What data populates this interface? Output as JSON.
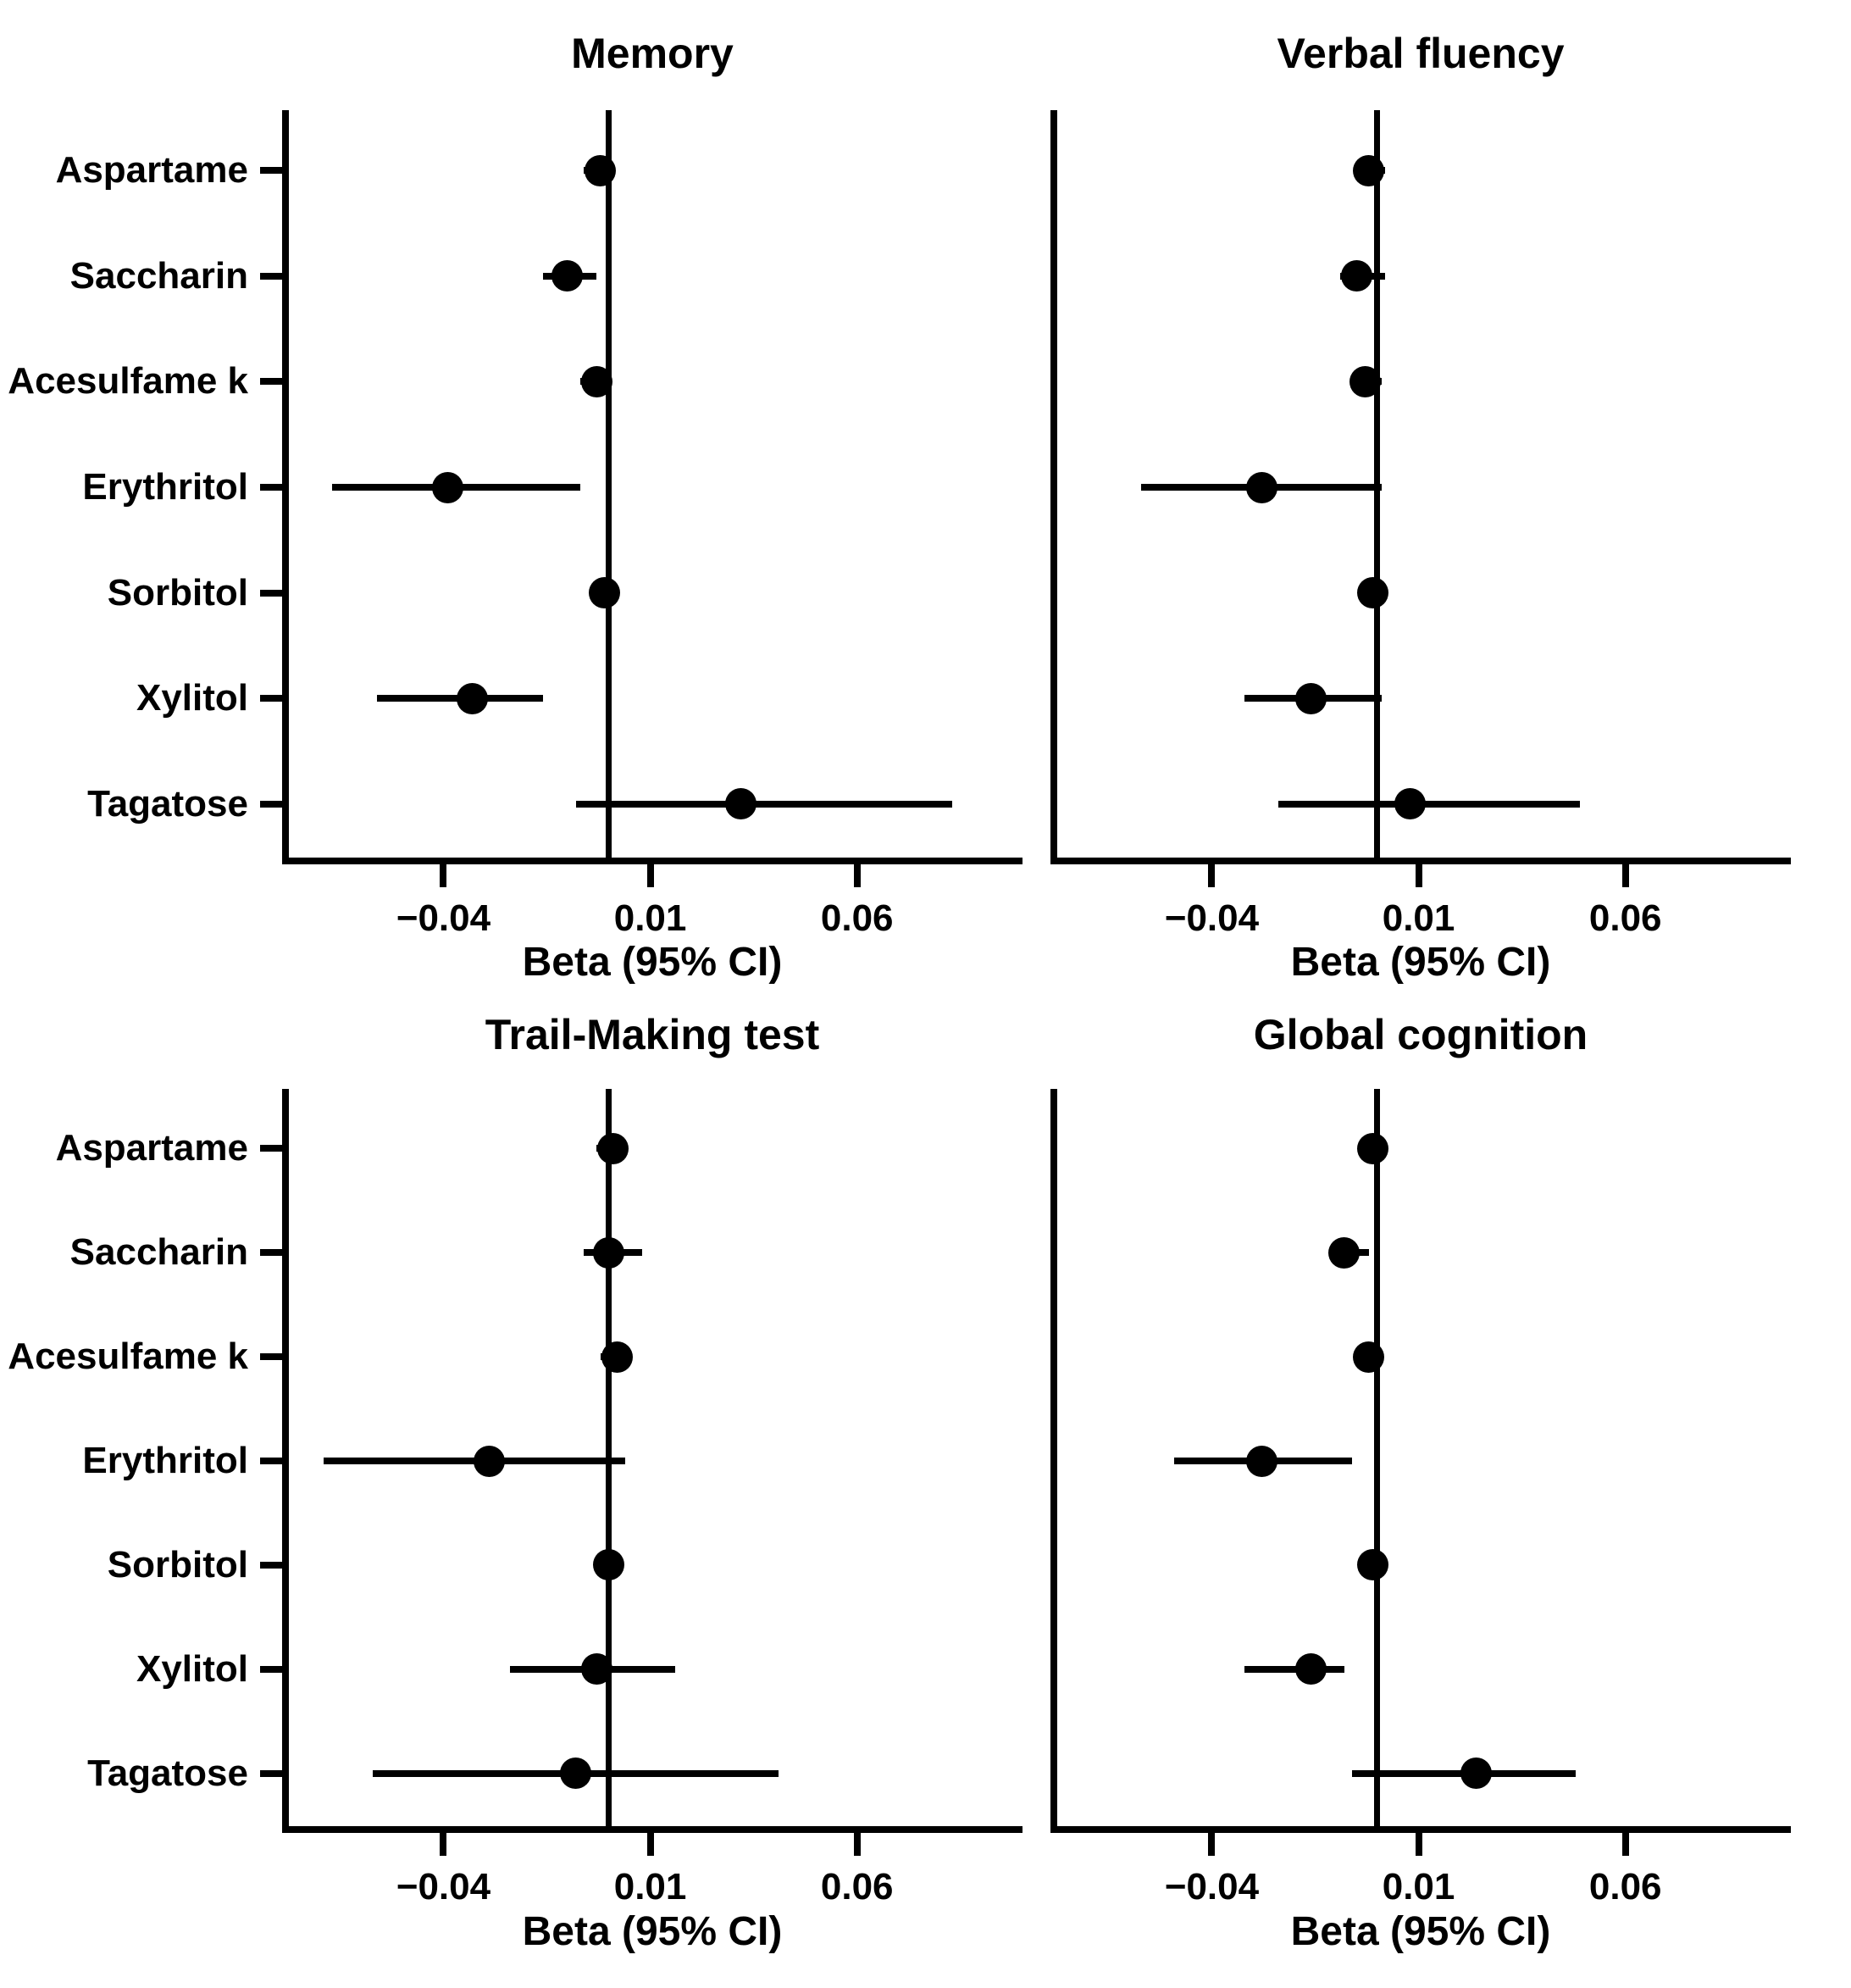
{
  "figure": {
    "background_color": "#ffffff",
    "foreground_color": "#000000",
    "x_axis_label": "Beta (95% CI)",
    "x_tick_values": [
      -0.04,
      0.01,
      0.06
    ],
    "x_tick_labels": [
      "−0.04",
      "0.01",
      "0.06"
    ],
    "x_range": [
      -0.079,
      0.1
    ],
    "reference_line_x": 0,
    "categories": [
      "Aspartame",
      "Saccharin",
      "Acesulfame k",
      "Erythritol",
      "Sorbitol",
      "Xylitol",
      "Tagatose"
    ]
  },
  "chart_data": [
    {
      "type": "scatter",
      "subtype": "forest-plot",
      "title": "Memory",
      "xlabel": "Beta (95% CI)",
      "xlim": [
        -0.079,
        0.1
      ],
      "x_ticks": [
        -0.04,
        0.01,
        0.06
      ],
      "reference_x": 0,
      "grid": false,
      "categories": [
        "Aspartame",
        "Saccharin",
        "Acesulfame k",
        "Erythritol",
        "Sorbitol",
        "Xylitol",
        "Tagatose"
      ],
      "points": [
        {
          "category": "Aspartame",
          "beta": -0.002,
          "ci_low": -0.006,
          "ci_high": 0.001
        },
        {
          "category": "Saccharin",
          "beta": -0.01,
          "ci_low": -0.016,
          "ci_high": -0.003
        },
        {
          "category": "Acesulfame k",
          "beta": -0.003,
          "ci_low": -0.007,
          "ci_high": 0.0
        },
        {
          "category": "Erythritol",
          "beta": -0.039,
          "ci_low": -0.067,
          "ci_high": -0.007
        },
        {
          "category": "Sorbitol",
          "beta": -0.001,
          "ci_low": -0.004,
          "ci_high": 0.002
        },
        {
          "category": "Xylitol",
          "beta": -0.033,
          "ci_low": -0.056,
          "ci_high": -0.016
        },
        {
          "category": "Tagatose",
          "beta": 0.032,
          "ci_low": -0.008,
          "ci_high": 0.083
        }
      ]
    },
    {
      "type": "scatter",
      "subtype": "forest-plot",
      "title": "Verbal fluency",
      "xlabel": "Beta (95% CI)",
      "xlim": [
        -0.079,
        0.1
      ],
      "x_ticks": [
        -0.04,
        0.01,
        0.06
      ],
      "reference_x": 0,
      "grid": false,
      "categories": [
        "Aspartame",
        "Saccharin",
        "Acesulfame k",
        "Erythritol",
        "Sorbitol",
        "Xylitol",
        "Tagatose"
      ],
      "points": [
        {
          "category": "Aspartame",
          "beta": -0.002,
          "ci_low": -0.005,
          "ci_high": 0.002
        },
        {
          "category": "Saccharin",
          "beta": -0.005,
          "ci_low": -0.009,
          "ci_high": 0.002
        },
        {
          "category": "Acesulfame k",
          "beta": -0.003,
          "ci_low": -0.006,
          "ci_high": 0.001
        },
        {
          "category": "Erythritol",
          "beta": -0.028,
          "ci_low": -0.057,
          "ci_high": 0.001
        },
        {
          "category": "Sorbitol",
          "beta": -0.001,
          "ci_low": -0.004,
          "ci_high": 0.002
        },
        {
          "category": "Xylitol",
          "beta": -0.016,
          "ci_low": -0.032,
          "ci_high": 0.001
        },
        {
          "category": "Tagatose",
          "beta": 0.008,
          "ci_low": -0.024,
          "ci_high": 0.049
        }
      ]
    },
    {
      "type": "scatter",
      "subtype": "forest-plot",
      "title": "Trail-Making test",
      "xlabel": "Beta (95% CI)",
      "xlim": [
        -0.079,
        0.1
      ],
      "x_ticks": [
        -0.04,
        0.01,
        0.06
      ],
      "reference_x": 0,
      "grid": false,
      "categories": [
        "Aspartame",
        "Saccharin",
        "Acesulfame k",
        "Erythritol",
        "Sorbitol",
        "Xylitol",
        "Tagatose"
      ],
      "points": [
        {
          "category": "Aspartame",
          "beta": 0.001,
          "ci_low": -0.003,
          "ci_high": 0.004
        },
        {
          "category": "Saccharin",
          "beta": 0.0,
          "ci_low": -0.006,
          "ci_high": 0.008
        },
        {
          "category": "Acesulfame k",
          "beta": 0.002,
          "ci_low": -0.002,
          "ci_high": 0.005
        },
        {
          "category": "Erythritol",
          "beta": -0.029,
          "ci_low": -0.069,
          "ci_high": 0.004
        },
        {
          "category": "Sorbitol",
          "beta": 0.0,
          "ci_low": -0.003,
          "ci_high": 0.003
        },
        {
          "category": "Xylitol",
          "beta": -0.003,
          "ci_low": -0.024,
          "ci_high": 0.016
        },
        {
          "category": "Tagatose",
          "beta": -0.008,
          "ci_low": -0.057,
          "ci_high": 0.041
        }
      ]
    },
    {
      "type": "scatter",
      "subtype": "forest-plot",
      "title": "Global cognition",
      "xlabel": "Beta (95% CI)",
      "xlim": [
        -0.079,
        0.1
      ],
      "x_ticks": [
        -0.04,
        0.01,
        0.06
      ],
      "reference_x": 0,
      "grid": false,
      "categories": [
        "Aspartame",
        "Saccharin",
        "Acesulfame k",
        "Erythritol",
        "Sorbitol",
        "Xylitol",
        "Tagatose"
      ],
      "points": [
        {
          "category": "Aspartame",
          "beta": -0.001,
          "ci_low": -0.004,
          "ci_high": 0.002
        },
        {
          "category": "Saccharin",
          "beta": -0.008,
          "ci_low": -0.011,
          "ci_high": -0.002
        },
        {
          "category": "Acesulfame k",
          "beta": -0.002,
          "ci_low": -0.005,
          "ci_high": 0.0
        },
        {
          "category": "Erythritol",
          "beta": -0.028,
          "ci_low": -0.049,
          "ci_high": -0.006
        },
        {
          "category": "Sorbitol",
          "beta": -0.001,
          "ci_low": -0.004,
          "ci_high": 0.002
        },
        {
          "category": "Xylitol",
          "beta": -0.016,
          "ci_low": -0.032,
          "ci_high": -0.008
        },
        {
          "category": "Tagatose",
          "beta": 0.024,
          "ci_low": -0.006,
          "ci_high": 0.048
        }
      ]
    }
  ]
}
